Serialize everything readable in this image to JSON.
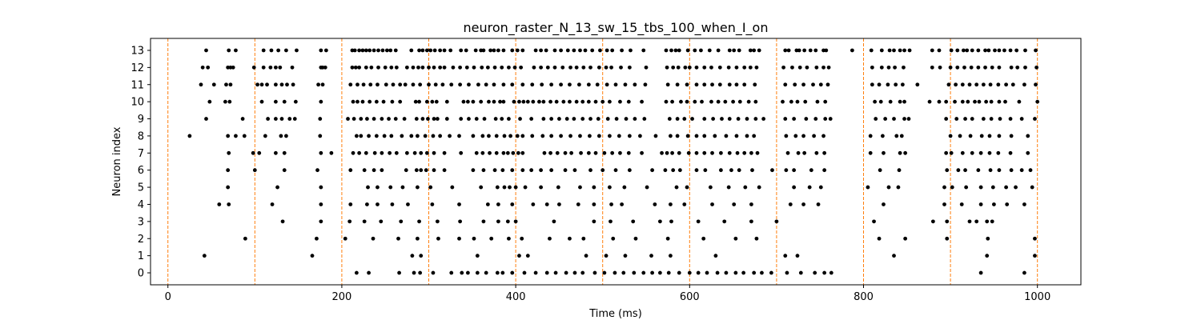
{
  "chart_data": {
    "type": "scatter",
    "title": "neuron_raster_N_13_sw_15_tbs_100_when_I_on",
    "xlabel": "Time (ms)",
    "ylabel": "Neuron index",
    "xlim": [
      -20,
      1050
    ],
    "ylim": [
      -0.7,
      13.7
    ],
    "xticks": [
      0,
      200,
      400,
      600,
      800,
      1000
    ],
    "yticks": [
      0,
      1,
      2,
      3,
      4,
      5,
      6,
      7,
      8,
      9,
      10,
      11,
      12,
      13
    ],
    "grid": false,
    "marker_color": "#000000",
    "vline_color": "#ff7f0e",
    "vlines": [
      0,
      100,
      200,
      300,
      400,
      500,
      600,
      700,
      800,
      900,
      1000
    ],
    "series": [
      {
        "neuron": 13,
        "spike_times": [
          44,
          70,
          78,
          110,
          119,
          127,
          136,
          148,
          176,
          182,
          212,
          215,
          220,
          224,
          228,
          232,
          237,
          242,
          247,
          252,
          256,
          262,
          280,
          289,
          293,
          298,
          302,
          307,
          313,
          318,
          325,
          337,
          343,
          354,
          360,
          363,
          371,
          375,
          380,
          386,
          396,
          402,
          408,
          423,
          429,
          435,
          445,
          452,
          460,
          467,
          474,
          480,
          488,
          497,
          505,
          511,
          522,
          532,
          547,
          573,
          579,
          584,
          588,
          598,
          606,
          613,
          623,
          633,
          646,
          651,
          657,
          670,
          674,
          680,
          710,
          714,
          723,
          726,
          732,
          739,
          745,
          754,
          757,
          787,
          809,
          821,
          830,
          835,
          842,
          847,
          853,
          879,
          887,
          901,
          908,
          915,
          919,
          925,
          932,
          940,
          944,
          951,
          956,
          962,
          969,
          976,
          986,
          998
        ]
      },
      {
        "neuron": 12,
        "spike_times": [
          40,
          46,
          69,
          72,
          75,
          99,
          110,
          118,
          124,
          129,
          143,
          176,
          178,
          181,
          212,
          216,
          220,
          228,
          234,
          242,
          250,
          257,
          263,
          275,
          282,
          288,
          293,
          300,
          306,
          313,
          318,
          328,
          336,
          344,
          352,
          361,
          368,
          376,
          384,
          392,
          399,
          406,
          421,
          429,
          437,
          445,
          454,
          463,
          470,
          478,
          486,
          496,
          504,
          510,
          521,
          531,
          550,
          574,
          581,
          587,
          595,
          600,
          608,
          617,
          625,
          635,
          645,
          654,
          663,
          670,
          677,
          708,
          718,
          727,
          735,
          746,
          754,
          760,
          810,
          821,
          829,
          836,
          846,
          879,
          888,
          900,
          908,
          916,
          924,
          932,
          940,
          948,
          956,
          970,
          977,
          986,
          999
        ]
      },
      {
        "neuron": 11,
        "spike_times": [
          38,
          53,
          67,
          72,
          103,
          108,
          114,
          124,
          131,
          137,
          144,
          173,
          178,
          210,
          218,
          225,
          233,
          241,
          251,
          259,
          267,
          273,
          282,
          290,
          300,
          308,
          316,
          326,
          336,
          346,
          357,
          366,
          375,
          386,
          396,
          408,
          419,
          430,
          441,
          452,
          462,
          473,
          484,
          494,
          505,
          515,
          526,
          537,
          549,
          575,
          586,
          597,
          608,
          617,
          626,
          635,
          646,
          654,
          663,
          675,
          710,
          721,
          731,
          742,
          751,
          759,
          810,
          818,
          828,
          837,
          845,
          862,
          898,
          906,
          914,
          922,
          930,
          938,
          946,
          955,
          964,
          972,
          985,
          998
        ]
      },
      {
        "neuron": 10,
        "spike_times": [
          48,
          66,
          71,
          108,
          124,
          134,
          147,
          176,
          213,
          218,
          224,
          232,
          240,
          248,
          258,
          267,
          285,
          289,
          298,
          304,
          309,
          321,
          340,
          345,
          351,
          360,
          369,
          375,
          382,
          386,
          398,
          404,
          409,
          414,
          420,
          427,
          432,
          440,
          447,
          455,
          462,
          470,
          477,
          484,
          492,
          500,
          508,
          520,
          530,
          545,
          573,
          580,
          590,
          597,
          606,
          614,
          625,
          633,
          641,
          650,
          658,
          668,
          676,
          707,
          717,
          724,
          733,
          747,
          756,
          813,
          820,
          831,
          842,
          847,
          876,
          887,
          895,
          905,
          914,
          920,
          928,
          933,
          941,
          947,
          956,
          963,
          979,
          1000
        ]
      },
      {
        "neuron": 9,
        "spike_times": [
          44,
          86,
          115,
          124,
          131,
          140,
          146,
          175,
          207,
          214,
          222,
          229,
          237,
          246,
          254,
          262,
          272,
          286,
          293,
          299,
          306,
          310,
          321,
          337,
          346,
          355,
          364,
          377,
          384,
          392,
          405,
          418,
          432,
          441,
          450,
          459,
          467,
          477,
          486,
          495,
          506,
          516,
          527,
          537,
          548,
          577,
          586,
          594,
          603,
          617,
          627,
          637,
          646,
          656,
          666,
          676,
          685,
          710,
          720,
          734,
          745,
          756,
          762,
          814,
          825,
          835,
          847,
          852,
          895,
          907,
          917,
          925,
          938,
          947,
          957,
          969,
          982,
          997
        ]
      },
      {
        "neuron": 8,
        "spike_times": [
          25,
          69,
          78,
          88,
          112,
          130,
          136,
          175,
          217,
          222,
          231,
          240,
          249,
          257,
          269,
          280,
          287,
          296,
          305,
          313,
          324,
          335,
          351,
          362,
          369,
          378,
          387,
          394,
          402,
          408,
          419,
          431,
          441,
          452,
          463,
          474,
          485,
          496,
          508,
          519,
          531,
          543,
          561,
          578,
          586,
          598,
          608,
          617,
          629,
          642,
          654,
          666,
          674,
          711,
          722,
          731,
          743,
          754,
          808,
          822,
          838,
          844,
          900,
          911,
          923,
          936,
          945,
          956,
          970,
          989
        ]
      },
      {
        "neuron": 7,
        "spike_times": [
          70,
          98,
          105,
          124,
          134,
          176,
          188,
          213,
          220,
          228,
          238,
          246,
          255,
          263,
          275,
          284,
          291,
          298,
          306,
          318,
          337,
          355,
          362,
          370,
          378,
          386,
          391,
          397,
          403,
          408,
          433,
          440,
          448,
          457,
          464,
          475,
          484,
          492,
          502,
          511,
          520,
          530,
          545,
          568,
          574,
          580,
          588,
          599,
          608,
          617,
          626,
          636,
          646,
          655,
          663,
          671,
          678,
          713,
          725,
          732,
          746,
          755,
          808,
          823,
          842,
          848,
          895,
          901,
          914,
          925,
          935,
          945,
          955,
          969,
          989
        ]
      },
      {
        "neuron": 6,
        "spike_times": [
          69,
          100,
          134,
          172,
          210,
          226,
          237,
          246,
          274,
          286,
          291,
          297,
          306,
          318,
          351,
          363,
          376,
          385,
          396,
          408,
          418,
          429,
          441,
          457,
          468,
          486,
          500,
          515,
          531,
          557,
          572,
          581,
          589,
          608,
          618,
          636,
          648,
          657,
          672,
          695,
          711,
          720,
          740,
          755,
          819,
          841,
          896,
          909,
          917,
          932,
          946,
          956,
          970,
          982,
          992
        ]
      },
      {
        "neuron": 5,
        "spike_times": [
          69,
          126,
          176,
          230,
          241,
          256,
          270,
          287,
          302,
          327,
          360,
          379,
          387,
          393,
          400,
          411,
          429,
          449,
          474,
          490,
          508,
          525,
          551,
          585,
          597,
          624,
          645,
          664,
          680,
          720,
          738,
          751,
          805,
          829,
          840,
          893,
          902,
          918,
          935,
          949,
          964,
          975,
          994
        ]
      },
      {
        "neuron": 4,
        "spike_times": [
          59,
          70,
          120,
          176,
          210,
          229,
          241,
          258,
          276,
          304,
          335,
          368,
          380,
          396,
          420,
          436,
          450,
          472,
          490,
          510,
          522,
          560,
          578,
          594,
          626,
          651,
          671,
          716,
          731,
          748,
          823,
          893,
          913,
          935,
          950,
          965,
          985
        ]
      },
      {
        "neuron": 3,
        "spike_times": [
          132,
          176,
          209,
          226,
          245,
          268,
          289,
          310,
          336,
          363,
          380,
          391,
          400,
          444,
          490,
          509,
          535,
          566,
          579,
          610,
          640,
          671,
          700,
          812,
          880,
          896,
          922,
          930,
          942,
          948
        ]
      },
      {
        "neuron": 2,
        "spike_times": [
          89,
          171,
          204,
          236,
          265,
          287,
          311,
          335,
          352,
          372,
          392,
          407,
          439,
          462,
          478,
          512,
          538,
          575,
          616,
          653,
          677,
          818,
          848,
          896,
          943,
          997
        ]
      },
      {
        "neuron": 1,
        "spike_times": [
          42,
          166,
          281,
          291,
          356,
          404,
          414,
          481,
          504,
          526,
          556,
          578,
          630,
          710,
          724,
          835,
          942,
          997
        ]
      },
      {
        "neuron": 0,
        "spike_times": [
          217,
          231,
          266,
          283,
          290,
          305,
          326,
          338,
          345,
          356,
          366,
          379,
          385,
          396,
          410,
          423,
          436,
          446,
          458,
          468,
          477,
          491,
          502,
          514,
          524,
          536,
          547,
          557,
          566,
          576,
          588,
          600,
          610,
          620,
          632,
          642,
          653,
          662,
          674,
          683,
          694,
          712,
          728,
          744,
          755,
          763,
          935,
          985
        ]
      }
    ]
  }
}
